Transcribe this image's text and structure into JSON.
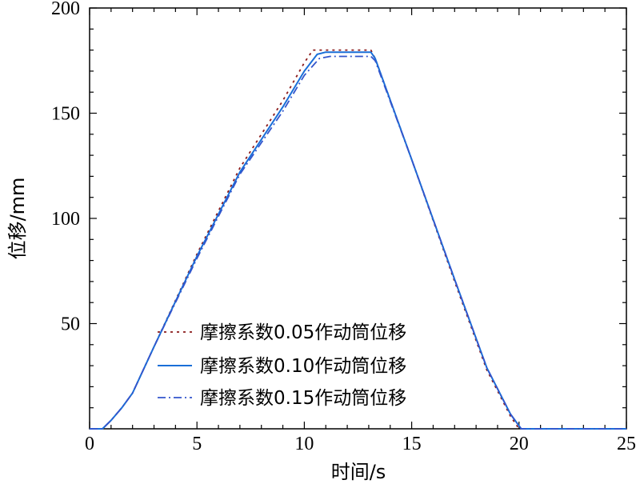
{
  "chart_data": {
    "type": "line",
    "title": "",
    "xlabel": "时间/s",
    "ylabel": "位移/mm",
    "xlim": [
      0,
      25
    ],
    "ylim": [
      0,
      200
    ],
    "x_ticks": [
      0,
      5,
      10,
      15,
      20,
      25
    ],
    "y_ticks": [
      50,
      100,
      150,
      200
    ],
    "x_tick_labels": [
      "0",
      "5",
      "10",
      "15",
      "20",
      "25"
    ],
    "y_tick_labels": [
      "50",
      "100",
      "150",
      "200"
    ],
    "grid": false,
    "legend_position": "lower-left",
    "series": [
      {
        "name": "摩擦系数0.05作动筒位移",
        "color": "#8b1a1a",
        "style": "dotted",
        "points": [
          [
            0,
            0
          ],
          [
            0.6,
            0
          ],
          [
            1.0,
            4
          ],
          [
            1.5,
            10
          ],
          [
            2.0,
            17
          ],
          [
            3.0,
            39
          ],
          [
            5.0,
            83
          ],
          [
            7.0,
            124
          ],
          [
            9.0,
            156
          ],
          [
            10.0,
            174
          ],
          [
            10.4,
            180
          ],
          [
            13.1,
            180
          ],
          [
            13.3,
            176
          ],
          [
            15.0,
            128
          ],
          [
            17.0,
            70
          ],
          [
            18.5,
            28
          ],
          [
            19.6,
            6
          ],
          [
            20.0,
            0
          ],
          [
            25,
            0
          ]
        ]
      },
      {
        "name": "摩擦系数0.10作动筒位移",
        "color": "#1a6fd8",
        "style": "solid",
        "points": [
          [
            0,
            0
          ],
          [
            0.6,
            0
          ],
          [
            1.0,
            4
          ],
          [
            1.5,
            10
          ],
          [
            2.0,
            17
          ],
          [
            3.0,
            39
          ],
          [
            5.0,
            82
          ],
          [
            7.0,
            122
          ],
          [
            9.0,
            153
          ],
          [
            10.0,
            170
          ],
          [
            10.6,
            178
          ],
          [
            11.0,
            179
          ],
          [
            13.1,
            179
          ],
          [
            13.3,
            176
          ],
          [
            15.0,
            128
          ],
          [
            17.0,
            71
          ],
          [
            18.5,
            29
          ],
          [
            19.6,
            7
          ],
          [
            20.1,
            0
          ],
          [
            25,
            0
          ]
        ]
      },
      {
        "name": "摩擦系数0.15作动筒位移",
        "color": "#3355cc",
        "style": "dashdot",
        "points": [
          [
            0,
            0
          ],
          [
            0.6,
            0
          ],
          [
            1.0,
            4
          ],
          [
            1.5,
            10
          ],
          [
            2.0,
            17
          ],
          [
            3.0,
            39
          ],
          [
            5.0,
            81
          ],
          [
            7.0,
            121
          ],
          [
            9.0,
            151
          ],
          [
            10.0,
            168
          ],
          [
            10.7,
            176
          ],
          [
            11.2,
            177
          ],
          [
            13.1,
            177
          ],
          [
            13.3,
            175
          ],
          [
            15.0,
            128
          ],
          [
            17.0,
            71
          ],
          [
            18.5,
            29
          ],
          [
            19.6,
            7
          ],
          [
            20.1,
            0
          ],
          [
            25,
            0
          ]
        ]
      }
    ]
  }
}
